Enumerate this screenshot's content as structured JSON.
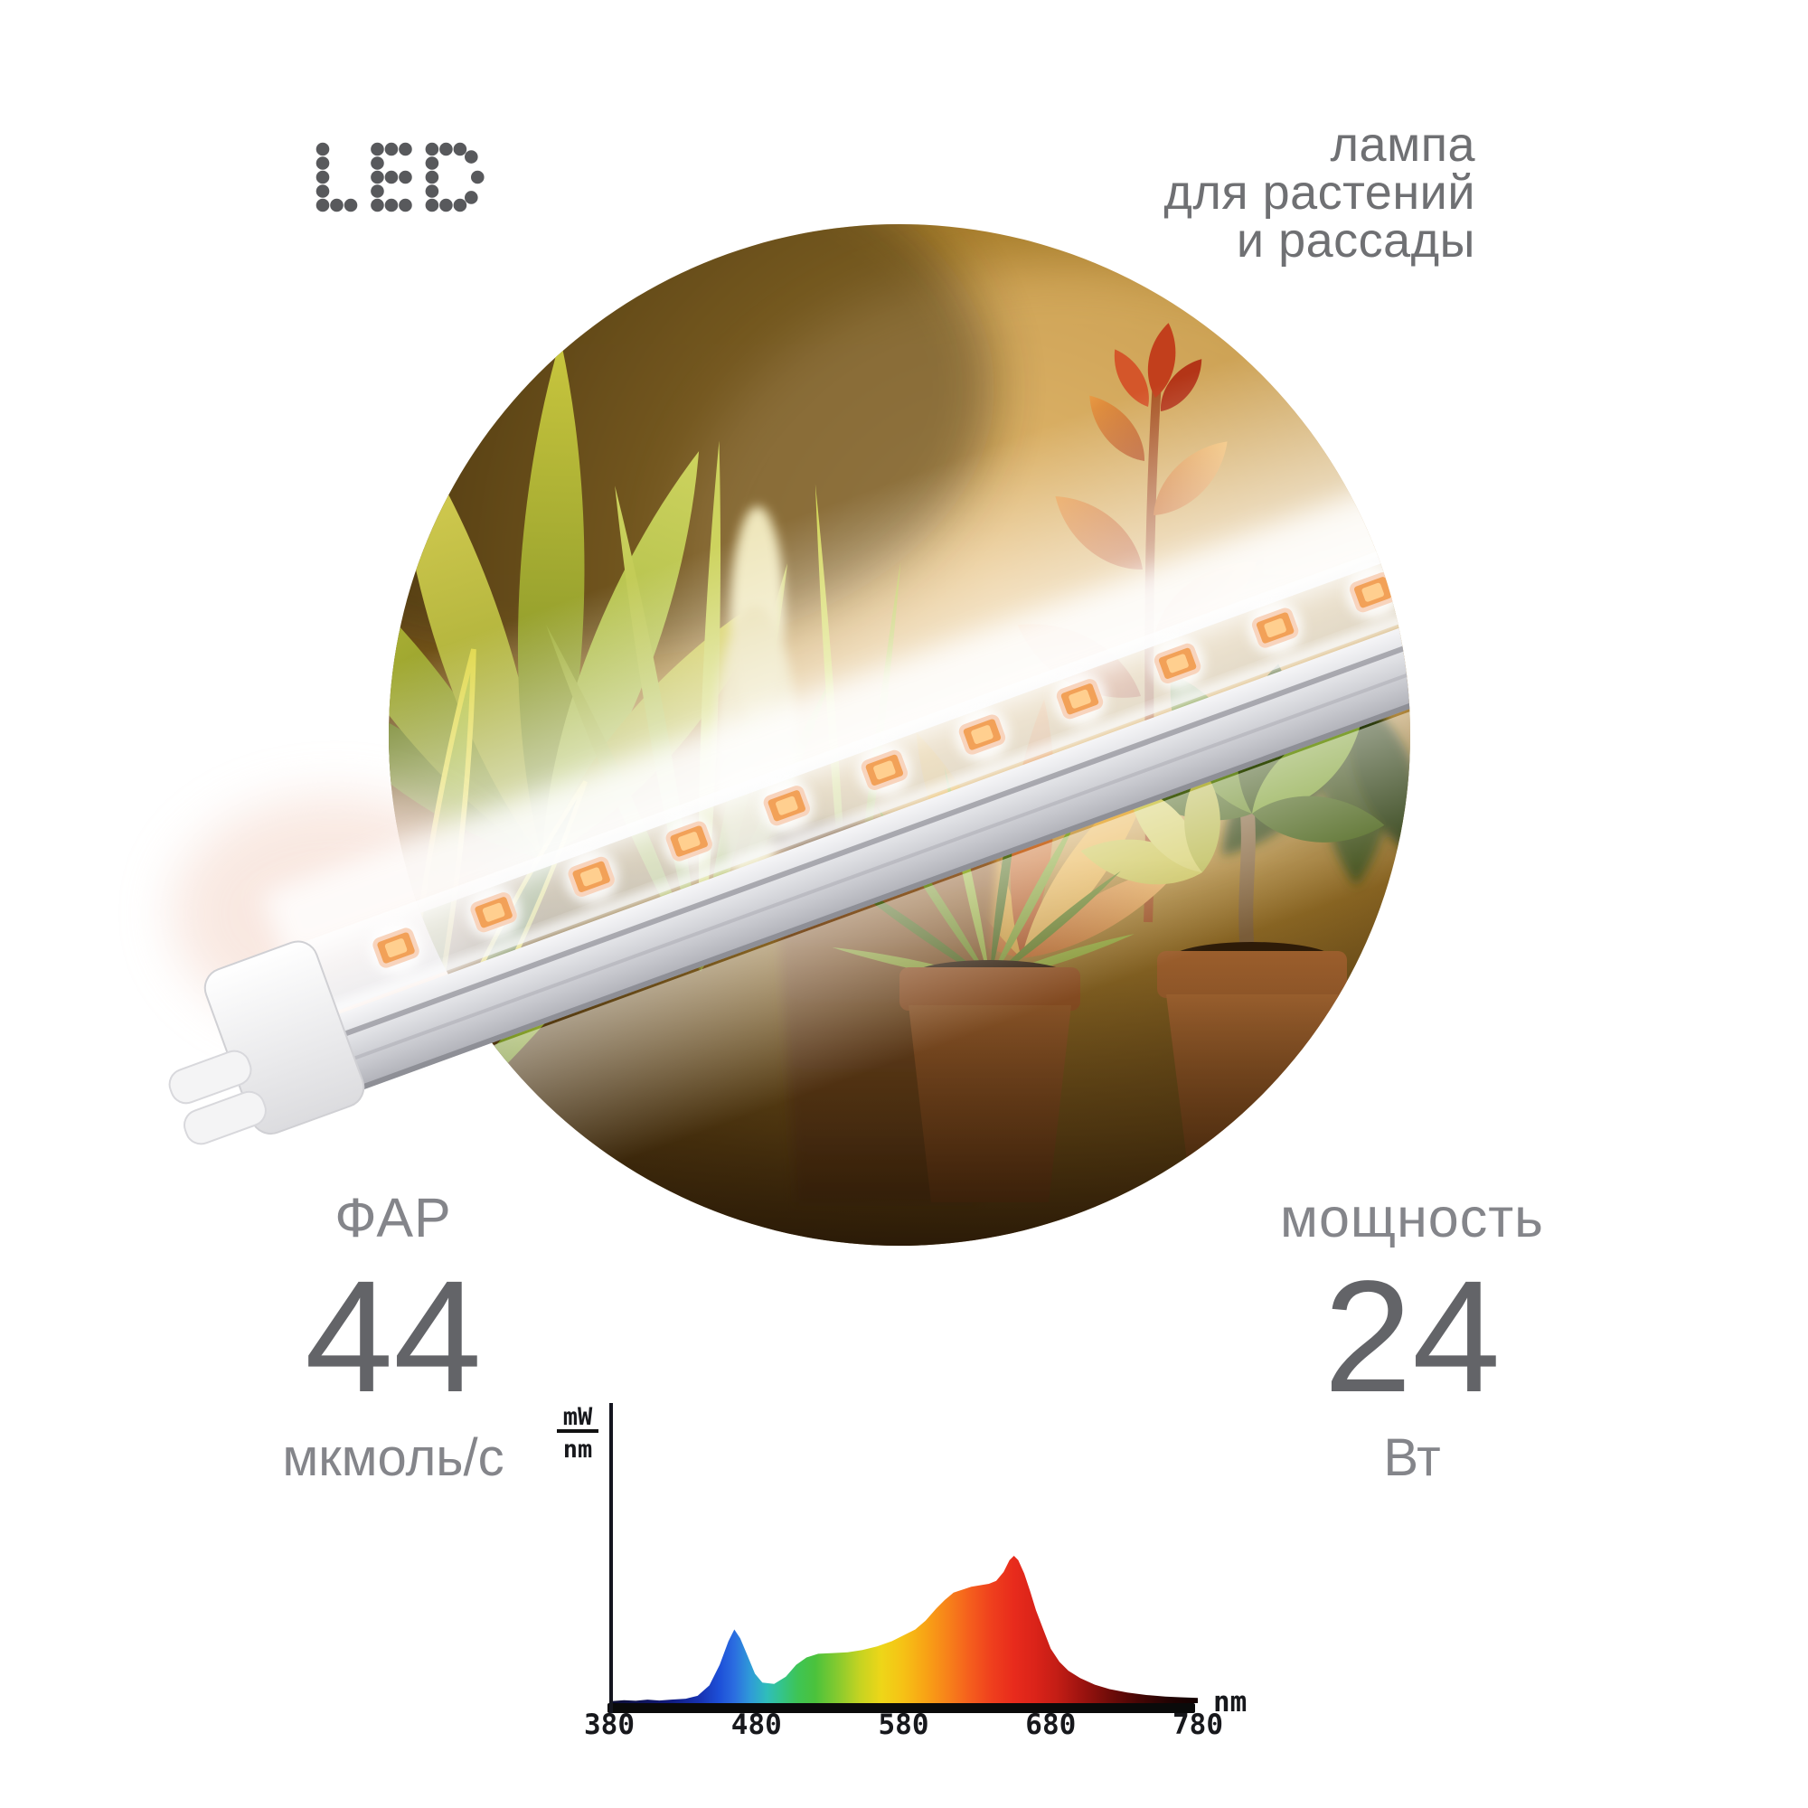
{
  "logo": {
    "text": "LED"
  },
  "tagline": {
    "lines": [
      "лампа",
      "для растений",
      "и рассады"
    ]
  },
  "specs": {
    "par": {
      "label": "ФАР",
      "value": "44",
      "unit": "мкмоль/с"
    },
    "power": {
      "label": "мощность",
      "value": "24",
      "unit": "Вт"
    }
  },
  "chart_data": {
    "type": "area",
    "title": "",
    "ylabel_numerator": "mW",
    "ylabel_denominator": "nm",
    "xlabel": "nm",
    "xlim": [
      380,
      780
    ],
    "ylim": [
      0,
      1
    ],
    "grid": false,
    "x_ticks": [
      380,
      480,
      580,
      680,
      780
    ],
    "points": [
      [
        380,
        0.012
      ],
      [
        390,
        0.02
      ],
      [
        398,
        0.016
      ],
      [
        406,
        0.024
      ],
      [
        414,
        0.018
      ],
      [
        422,
        0.024
      ],
      [
        432,
        0.03
      ],
      [
        440,
        0.05
      ],
      [
        448,
        0.12
      ],
      [
        455,
        0.26
      ],
      [
        461,
        0.42
      ],
      [
        465,
        0.5
      ],
      [
        469,
        0.44
      ],
      [
        474,
        0.32
      ],
      [
        479,
        0.2
      ],
      [
        484,
        0.14
      ],
      [
        492,
        0.13
      ],
      [
        500,
        0.18
      ],
      [
        507,
        0.26
      ],
      [
        514,
        0.31
      ],
      [
        522,
        0.335
      ],
      [
        532,
        0.34
      ],
      [
        542,
        0.345
      ],
      [
        552,
        0.36
      ],
      [
        562,
        0.385
      ],
      [
        572,
        0.42
      ],
      [
        580,
        0.46
      ],
      [
        588,
        0.5
      ],
      [
        595,
        0.56
      ],
      [
        602,
        0.64
      ],
      [
        608,
        0.7
      ],
      [
        614,
        0.75
      ],
      [
        620,
        0.77
      ],
      [
        626,
        0.79
      ],
      [
        632,
        0.8
      ],
      [
        638,
        0.81
      ],
      [
        643,
        0.83
      ],
      [
        648,
        0.89
      ],
      [
        652,
        0.97
      ],
      [
        655,
        1.0
      ],
      [
        658,
        0.97
      ],
      [
        662,
        0.88
      ],
      [
        666,
        0.76
      ],
      [
        670,
        0.63
      ],
      [
        675,
        0.5
      ],
      [
        680,
        0.37
      ],
      [
        686,
        0.28
      ],
      [
        692,
        0.22
      ],
      [
        700,
        0.17
      ],
      [
        710,
        0.125
      ],
      [
        720,
        0.095
      ],
      [
        732,
        0.072
      ],
      [
        745,
        0.055
      ],
      [
        758,
        0.045
      ],
      [
        768,
        0.04
      ],
      [
        780,
        0.035
      ]
    ],
    "spectral_stops": [
      [
        380,
        "#0d0d30"
      ],
      [
        420,
        "#10197a"
      ],
      [
        442,
        "#1733b4"
      ],
      [
        455,
        "#1d50d8"
      ],
      [
        465,
        "#2b6de0"
      ],
      [
        476,
        "#2f9bd8"
      ],
      [
        487,
        "#2fbdbb"
      ],
      [
        497,
        "#34c48a"
      ],
      [
        508,
        "#3ec455"
      ],
      [
        520,
        "#4bc23c"
      ],
      [
        535,
        "#85ca2f"
      ],
      [
        550,
        "#c4d322"
      ],
      [
        565,
        "#eed618"
      ],
      [
        580,
        "#f6c115"
      ],
      [
        595,
        "#f8a315"
      ],
      [
        610,
        "#f7821a"
      ],
      [
        625,
        "#f55e1d"
      ],
      [
        640,
        "#ef3f1d"
      ],
      [
        655,
        "#e82b1c"
      ],
      [
        670,
        "#da2319"
      ],
      [
        685,
        "#c21d15"
      ],
      [
        700,
        "#a01410"
      ],
      [
        720,
        "#700c09"
      ],
      [
        740,
        "#460605"
      ],
      [
        760,
        "#230303"
      ],
      [
        780,
        "#120101"
      ]
    ]
  },
  "colors": {
    "text_muted": "#84858a",
    "value_text": "#636468",
    "tagline_text": "#6f7073",
    "logo_dots": "#58595c",
    "chart_ink": "#17181c"
  }
}
